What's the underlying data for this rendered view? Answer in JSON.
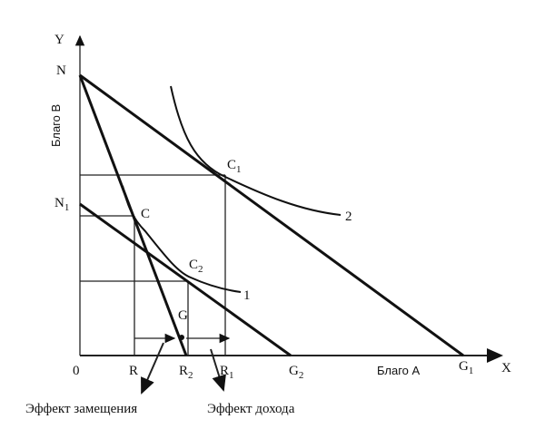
{
  "axes": {
    "y_label": "Y",
    "x_label": "X",
    "origin": "0",
    "y_title": "Благо B",
    "x_title": "Благо А"
  },
  "points": [
    {
      "text": "N"
    },
    {
      "text": "N",
      "sub": "1"
    },
    {
      "text": "C",
      "sub": "1"
    },
    {
      "text": "C"
    },
    {
      "text": "C",
      "sub": "2"
    },
    {
      "text": "G"
    },
    {
      "text": "R"
    },
    {
      "text": "R",
      "sub": "2"
    },
    {
      "text": "R",
      "sub": "1"
    },
    {
      "text": "G",
      "sub": "2"
    },
    {
      "text": "G",
      "sub": "1"
    }
  ],
  "curves": [
    "1",
    "2"
  ],
  "annotations": [
    "Эффект замещения",
    "Эффект дохода"
  ]
}
